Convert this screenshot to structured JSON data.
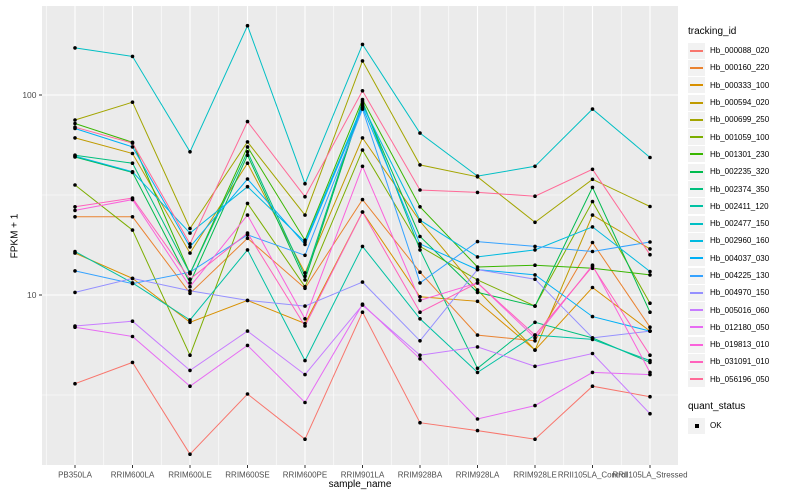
{
  "figure": {
    "background": "#FFFFFF",
    "panel_background": "#EBEBEB",
    "gridline_color": "#FFFFFF",
    "tick_text_color": "#4D4D4D",
    "tick_mark_color": "#333333"
  },
  "axes": {
    "y": {
      "title": "FPKM + 1",
      "scale": "log10",
      "tick_labels": [
        "100",
        "10"
      ],
      "tick_values": [
        100,
        10
      ]
    },
    "x": {
      "title": "sample_name"
    }
  },
  "legend": {
    "tracking_title": "tracking_id",
    "quant_title": "quant_status",
    "quant_items": [
      {
        "label": "OK",
        "marker": "black-point"
      }
    ]
  },
  "chart_data": {
    "type": "line",
    "title": "",
    "xlabel": "sample_name",
    "ylabel": "FPKM + 1",
    "y_scale": "log10",
    "ylim": [
      1.4,
      280
    ],
    "y_major_gridlines": [
      10,
      100
    ],
    "y_minor_gridlines": [
      3.162,
      31.62
    ],
    "grid": true,
    "legend_position": "right",
    "point_color": "#000000",
    "categories": [
      "PB350LA",
      "RRIM600LA",
      "RRIM600LE",
      "RRIM600SE",
      "RRIM600PE",
      "RRIM901LA",
      "RRIM928BA",
      "RRIM928LA",
      "RRIM928LE",
      "RRII105LA_Control",
      "RRII105LA_Stressed"
    ],
    "series": [
      {
        "name": "Hb_000088_020",
        "color": "#F8766D",
        "values": [
          3.6,
          4.6,
          1.6,
          3.2,
          1.9,
          8.2,
          2.3,
          2.1,
          1.9,
          3.5,
          3.1
        ]
      },
      {
        "name": "Hb_000160_220",
        "color": "#EA8331",
        "values": [
          24.6,
          24.6,
          10.2,
          19.2,
          10.8,
          30,
          13,
          6.3,
          5.9,
          18.3,
          6.9
        ]
      },
      {
        "name": "Hb_000333_100",
        "color": "#D89000",
        "values": [
          16.2,
          12.1,
          7.3,
          9.4,
          7.2,
          26,
          9.8,
          9.3,
          5.3,
          10.9,
          6.6
        ]
      },
      {
        "name": "Hb_000594_020",
        "color": "#C09B00",
        "values": [
          61,
          51,
          16.2,
          45.6,
          12.9,
          61,
          23.4,
          10.6,
          5.3,
          25.1,
          17
        ]
      },
      {
        "name": "Hb_000699_250",
        "color": "#A3A500",
        "values": [
          75,
          92,
          21.5,
          58.3,
          25.1,
          148,
          44.7,
          39,
          23.1,
          37.9,
          27.7
        ]
      },
      {
        "name": "Hb_001059_100",
        "color": "#7CAE00",
        "values": [
          35.5,
          21.1,
          5.0,
          28.7,
          11.0,
          53,
          17.5,
          11.9,
          8.8,
          29.3,
          9.1
        ]
      },
      {
        "name": "Hb_001301_230",
        "color": "#39B600",
        "values": [
          72,
          58,
          12.8,
          55,
          18.8,
          95,
          27.6,
          13.8,
          14.1,
          13.6,
          12.6
        ]
      },
      {
        "name": "Hb_002235_320",
        "color": "#00BB4E",
        "values": [
          49,
          41,
          11.5,
          50,
          11.9,
          91,
          19.6,
          10.3,
          8.8,
          34.5,
          8.2
        ]
      },
      {
        "name": "Hb_002374_350",
        "color": "#00BF7D",
        "values": [
          50,
          45.6,
          12.8,
          52,
          12.4,
          93,
          16.8,
          4.3,
          7.3,
          6.1,
          4.6
        ]
      },
      {
        "name": "Hb_002411_120",
        "color": "#00C1A3",
        "values": [
          16.5,
          11.5,
          7.5,
          16.8,
          4.7,
          17.5,
          7.6,
          4.1,
          6.3,
          6.0,
          4.7
        ]
      },
      {
        "name": "Hb_002477_150",
        "color": "#00BFC4",
        "values": [
          172,
          156,
          52,
          222,
          36,
          179,
          64.5,
          39.3,
          44,
          85,
          48.7
        ]
      },
      {
        "name": "Hb_002960_160",
        "color": "#00BAE0",
        "values": [
          49.5,
          41.3,
          20.4,
          34.8,
          18.4,
          89,
          23.7,
          15.5,
          16.8,
          21.9,
          13.1
        ]
      },
      {
        "name": "Hb_004037_030",
        "color": "#00B0F6",
        "values": [
          68,
          55,
          17.4,
          38,
          17.9,
          87,
          18,
          13.4,
          12.6,
          7.8,
          6.6
        ]
      },
      {
        "name": "Hb_004225_130",
        "color": "#35A2FF",
        "values": [
          13.2,
          11.4,
          13,
          20,
          15.8,
          85,
          11.5,
          18.5,
          17.5,
          16.5,
          18.4
        ]
      },
      {
        "name": "Hb_004970_150",
        "color": "#9590FF",
        "values": [
          10.3,
          12.1,
          10.5,
          9.4,
          8.8,
          11.6,
          5.9,
          13.4,
          12,
          6.1,
          6.6
        ]
      },
      {
        "name": "Hb_005016_060",
        "color": "#C77CFF",
        "values": [
          7.0,
          7.4,
          4.2,
          6.6,
          4.0,
          8.9,
          5.0,
          5.5,
          4.4,
          5.1,
          2.55
        ]
      },
      {
        "name": "Hb_012180_050",
        "color": "#E76BF3",
        "values": [
          6.9,
          6.2,
          3.5,
          5.6,
          2.9,
          9.0,
          4.8,
          2.4,
          2.8,
          4.1,
          4.0
        ]
      },
      {
        "name": "Hb_019813_010",
        "color": "#FA62DB",
        "values": [
          26.5,
          30,
          11,
          25.1,
          7.6,
          44,
          9.4,
          11.5,
          6.1,
          14.1,
          4.1
        ]
      },
      {
        "name": "Hb_031091_010",
        "color": "#FF62BC",
        "values": [
          27.6,
          30.5,
          12,
          20.4,
          7.0,
          26,
          8.2,
          11.5,
          6.3,
          13.9,
          5.0
        ]
      },
      {
        "name": "Hb_056196_050",
        "color": "#FF6A98",
        "values": [
          69,
          57.5,
          18,
          73.6,
          31,
          105,
          33.5,
          32.6,
          31.2,
          42.5,
          15.9
        ]
      }
    ]
  }
}
